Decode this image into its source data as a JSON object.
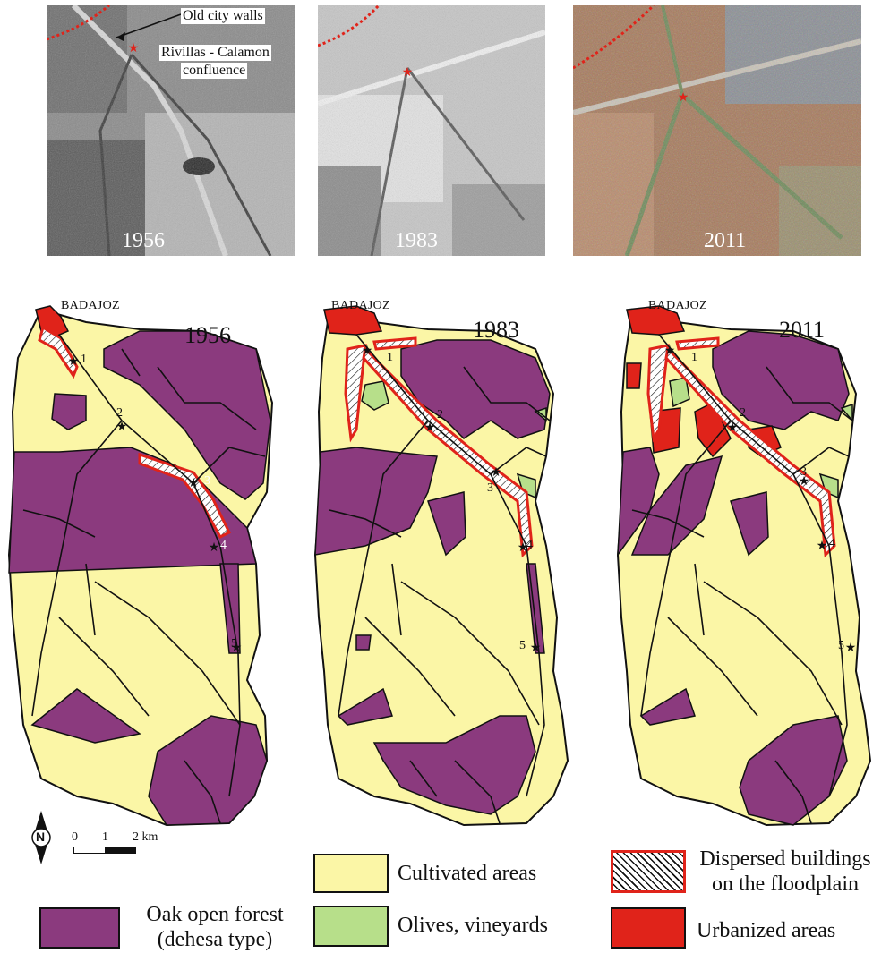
{
  "photos": [
    {
      "year": "1956",
      "annotations": {
        "walls": "Old city walls",
        "confluence_line1": "Rivillas - Calamon",
        "confluence_line2": "confluence"
      }
    },
    {
      "year": "1983"
    },
    {
      "year": "2011"
    }
  ],
  "maps": [
    {
      "place": "BADAJOZ",
      "year": "1956",
      "points": [
        "1",
        "2",
        "3",
        "4",
        "5"
      ]
    },
    {
      "place": "BADAJOZ",
      "year": "1983",
      "points": [
        "1",
        "2",
        "3",
        "4",
        "5"
      ]
    },
    {
      "place": "BADAJOZ",
      "year": "2011",
      "points": [
        "1",
        "2",
        "3",
        "4",
        "5"
      ]
    }
  ],
  "colors": {
    "oak": "#8b3a7e",
    "cultivated": "#fbf6a6",
    "olives": "#b7df8a",
    "urban": "#e0231a",
    "dispersed_border": "#e0231a",
    "rivers": "#111111",
    "walls": "#e0231a"
  },
  "north_arrow": {
    "label": "N",
    "icon": "north-arrow-icon"
  },
  "scale": {
    "ticks": [
      "0",
      "1",
      "2 km"
    ]
  },
  "legend": {
    "oak": {
      "line1": "Oak open forest",
      "line2": "(dehesa type)"
    },
    "cultivated": "Cultivated areas",
    "olives": "Olives, vineyards",
    "dispersed": {
      "line1": "Dispersed buildings",
      "line2": "on the floodplain"
    },
    "urban": "Urbanized areas"
  }
}
